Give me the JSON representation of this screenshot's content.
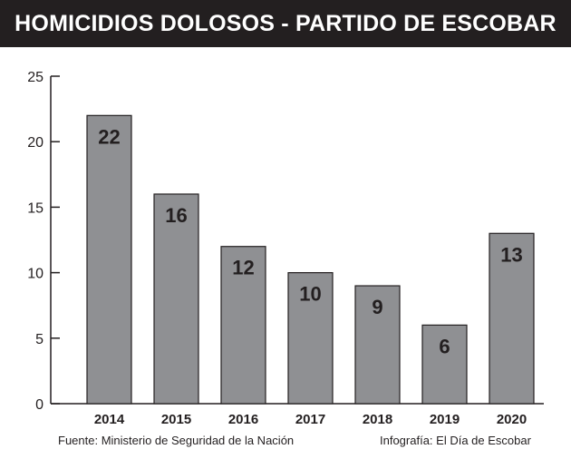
{
  "header": {
    "title": "HOMICIDIOS DOLOSOS - PARTIDO DE ESCOBAR"
  },
  "chart_data": {
    "type": "bar",
    "title": "HOMICIDIOS DOLOSOS - PARTIDO DE ESCOBAR",
    "xlabel": "",
    "ylabel": "",
    "categories": [
      "2014",
      "2015",
      "2016",
      "2017",
      "2018",
      "2019",
      "2020"
    ],
    "values": [
      22,
      16,
      12,
      10,
      9,
      6,
      13
    ],
    "ylim": [
      0,
      25
    ],
    "yticks": [
      0,
      5,
      10,
      15,
      20,
      25
    ],
    "grid": false,
    "legend": "none"
  },
  "footer": {
    "source": "Fuente: Ministerio de Seguridad de la Nación",
    "credit": "Infografía: El Día de Escobar"
  },
  "colors": {
    "header_bg": "#231f20",
    "header_text": "#ffffff",
    "bar_fill": "#8f9093",
    "bar_stroke": "#231f20",
    "axis": "#231f20",
    "text": "#231f20"
  }
}
